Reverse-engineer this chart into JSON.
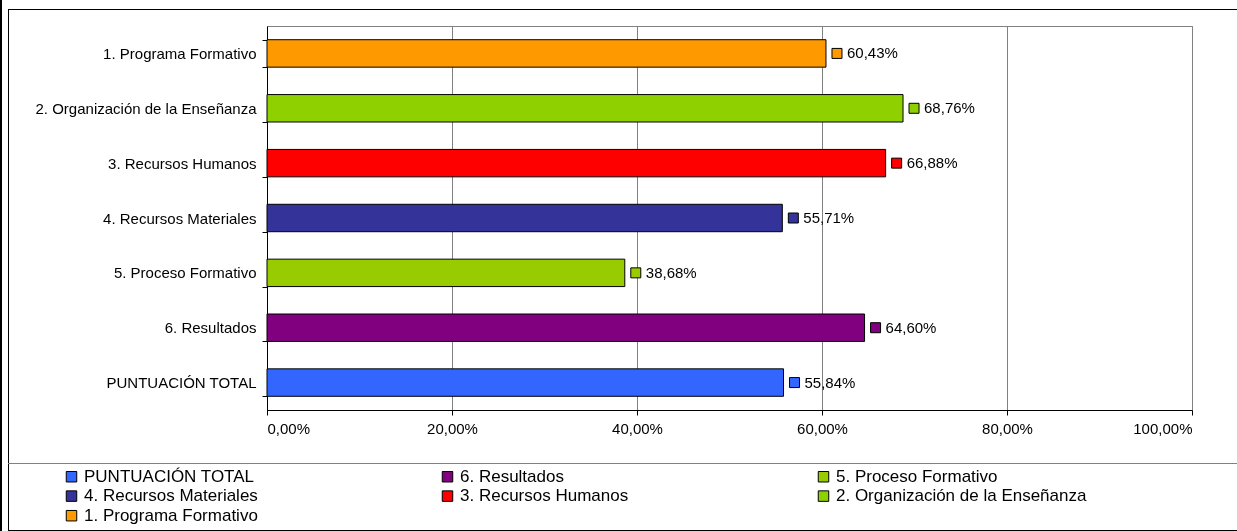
{
  "chart_data": {
    "type": "bar",
    "orientation": "horizontal",
    "stacked": true,
    "categories": [
      "1. Programa Formativo",
      "2. Organización de la Enseñanza",
      "3. Recursos Humanos",
      "4. Recursos Materiales",
      "5. Proceso Formativo",
      "6. Resultados",
      "PUNTUACIÓN TOTAL"
    ],
    "series": [
      {
        "name": "PUNTUACIÓN TOTAL",
        "color": "#3366ff",
        "values": [
          null,
          null,
          null,
          null,
          null,
          null,
          55.84
        ],
        "value_labels": [
          null,
          null,
          null,
          null,
          null,
          null,
          "55,84%"
        ]
      },
      {
        "name": "6. Resultados",
        "color": "#800080",
        "values": [
          null,
          null,
          null,
          null,
          null,
          64.6,
          null
        ],
        "value_labels": [
          null,
          null,
          null,
          null,
          null,
          "64,60%",
          null
        ]
      },
      {
        "name": "5. Proceso Formativo",
        "color": "#99cc00",
        "values": [
          null,
          null,
          null,
          null,
          38.68,
          null,
          null
        ],
        "value_labels": [
          null,
          null,
          null,
          null,
          "38,68%",
          null,
          null
        ]
      },
      {
        "name": "4. Recursos Materiales",
        "color": "#333399",
        "values": [
          null,
          null,
          null,
          55.71,
          null,
          null,
          null
        ],
        "value_labels": [
          null,
          null,
          null,
          "55,71%",
          null,
          null,
          null
        ]
      },
      {
        "name": "3. Recursos Humanos",
        "color": "#ff0000",
        "values": [
          null,
          null,
          66.88,
          null,
          null,
          null,
          null
        ],
        "value_labels": [
          null,
          null,
          "66,88%",
          null,
          null,
          null,
          null
        ]
      },
      {
        "name": "2. Organización de la Enseñanza",
        "color": "#8fd100",
        "values": [
          null,
          68.76,
          null,
          null,
          null,
          null,
          null
        ],
        "value_labels": [
          null,
          "68,76%",
          null,
          null,
          null,
          null,
          null
        ]
      },
      {
        "name": "1. Programa Formativo",
        "color": "#ff9900",
        "values": [
          60.43,
          null,
          null,
          null,
          null,
          null,
          null
        ],
        "value_labels": [
          "60,43%",
          null,
          null,
          null,
          null,
          null,
          null
        ]
      }
    ],
    "xlim": [
      0,
      100
    ],
    "xticks": [
      {
        "value": 0,
        "label": "0,00%"
      },
      {
        "value": 20,
        "label": "20,00%"
      },
      {
        "value": 40,
        "label": "40,00%"
      },
      {
        "value": 60,
        "label": "60,00%"
      },
      {
        "value": 80,
        "label": "80,00%"
      },
      {
        "value": 100,
        "label": "100,00%"
      }
    ],
    "grid": "x",
    "legend": "bottom"
  }
}
